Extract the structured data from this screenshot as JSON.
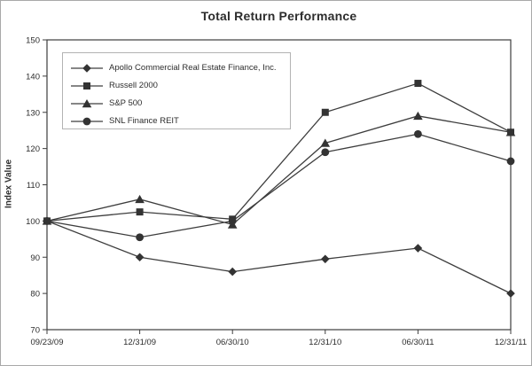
{
  "chart_data": {
    "type": "line",
    "title": "Total Return Performance",
    "xlabel": "",
    "ylabel": "Index Value",
    "categories": [
      "09/23/09",
      "12/31/09",
      "06/30/10",
      "12/31/10",
      "06/30/11",
      "12/31/11"
    ],
    "series": [
      {
        "name": "Apollo Commercial Real Estate Finance, Inc.",
        "marker": "diamond",
        "values": [
          100,
          90,
          86,
          89.5,
          92.5,
          80
        ]
      },
      {
        "name": "Russell 2000",
        "marker": "square",
        "values": [
          100,
          102.5,
          100.5,
          130,
          138,
          124.5
        ]
      },
      {
        "name": "S&P 500",
        "marker": "triangle",
        "values": [
          100,
          106,
          99,
          121.5,
          129,
          124.5
        ]
      },
      {
        "name": "SNL Finance REIT",
        "marker": "circle",
        "values": [
          100,
          95.5,
          100,
          119,
          124,
          116.5
        ]
      }
    ],
    "ylim": [
      70,
      150
    ],
    "y_ticks": [
      70,
      80,
      90,
      100,
      110,
      120,
      130,
      140,
      150
    ],
    "grid": false,
    "legend_position": "upper-left-inside",
    "line_color": "#3d3d3d",
    "marker_color": "#333333"
  }
}
